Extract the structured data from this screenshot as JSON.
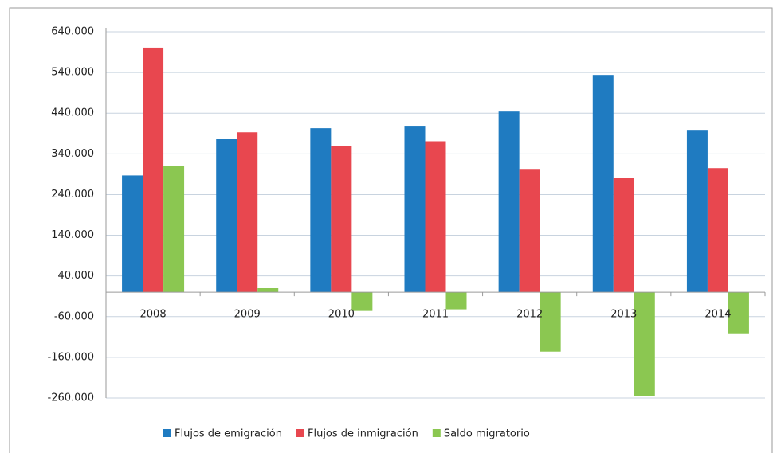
{
  "chart_data": {
    "type": "bar",
    "categories": [
      "2008",
      "2009",
      "2010",
      "2011",
      "2012",
      "2013",
      "2014"
    ],
    "series": [
      {
        "name": "Flujos de emigración",
        "color": "#1f7bc1",
        "values": [
          287000,
          377000,
          403000,
          409000,
          444000,
          534000,
          399000
        ]
      },
      {
        "name": "Flujos de inmigración",
        "color": "#e8474f",
        "values": [
          601000,
          393000,
          360000,
          371000,
          303000,
          281000,
          305000
        ]
      },
      {
        "name": "Saldo migratorio",
        "color": "#8bc751",
        "values": [
          311000,
          10000,
          -46000,
          -42000,
          -146000,
          -256000,
          -101000
        ]
      }
    ],
    "ylim": [
      -260000,
      640000
    ],
    "yticks": [
      {
        "value": -260000,
        "label": "-260.000"
      },
      {
        "value": -160000,
        "label": "-160.000"
      },
      {
        "value": -60000,
        "label": "-60.000"
      },
      {
        "value": 40000,
        "label": "40.000"
      },
      {
        "value": 140000,
        "label": "140.000"
      },
      {
        "value": 240000,
        "label": "240.000"
      },
      {
        "value": 340000,
        "label": "340.000"
      },
      {
        "value": 440000,
        "label": "440.000"
      },
      {
        "value": 540000,
        "label": "540.000"
      },
      {
        "value": 640000,
        "label": "640.000"
      }
    ],
    "grid": true
  }
}
